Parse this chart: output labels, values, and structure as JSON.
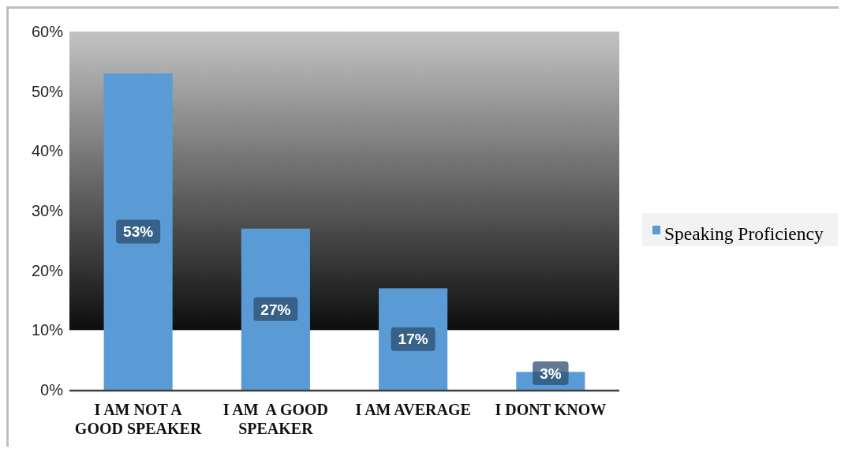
{
  "chart_data": {
    "type": "bar",
    "categories": [
      "I AM NOT A GOOD SPEAKER",
      "I AM  A GOOD SPEAKER",
      "I AM AVERAGE",
      "I DONT KNOW"
    ],
    "series": [
      {
        "name": "Speaking Proficiency",
        "color": "#5b9bd5",
        "values": [
          53,
          27,
          17,
          3
        ],
        "value_labels": [
          "53%",
          "27%",
          "17%",
          "3%"
        ]
      }
    ],
    "ylim": [
      0,
      60
    ],
    "yticks": [
      {
        "value": 0,
        "label": "0%"
      },
      {
        "value": 10,
        "label": "10%"
      },
      {
        "value": 20,
        "label": "20%"
      },
      {
        "value": 30,
        "label": "30%"
      },
      {
        "value": 40,
        "label": "40%"
      },
      {
        "value": 50,
        "label": "50%"
      },
      {
        "value": 60,
        "label": "60%"
      }
    ],
    "bands": [
      {
        "axis": "y",
        "from": 10,
        "to": 60,
        "color": "#0d0d0d"
      }
    ],
    "legend": "right"
  }
}
